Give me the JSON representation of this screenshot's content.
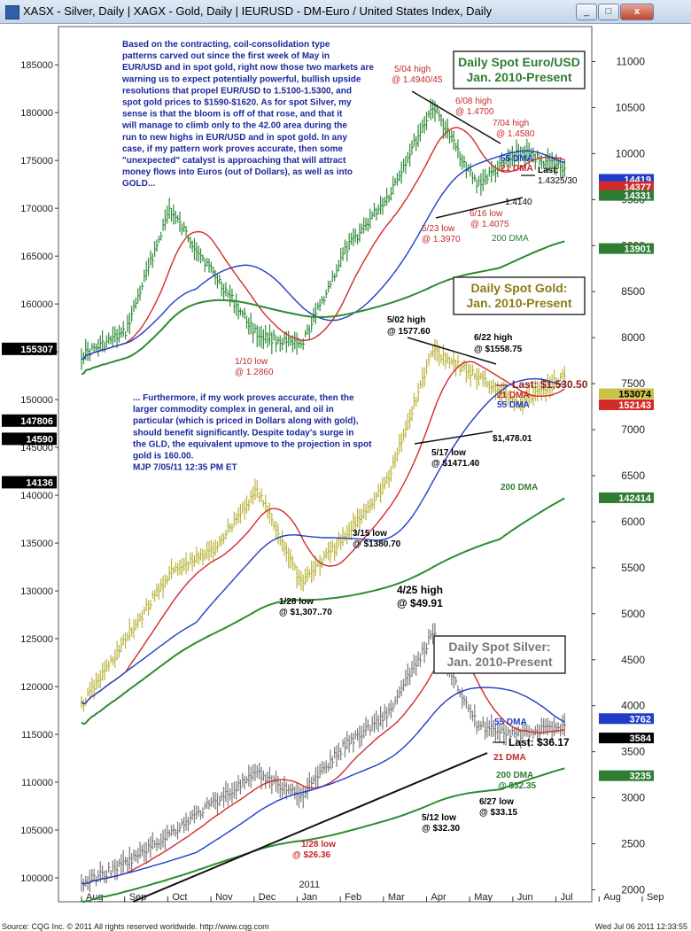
{
  "window": {
    "title": "XASX - Silver, Daily  |  XAGX - Gold, Daily  |  IEURUSD - DM-Euro / United States Index, Daily",
    "buttons": [
      "_",
      "□",
      "x",
      "▲",
      "▼"
    ]
  },
  "chart_data": {
    "type": "line",
    "subtype": "ohlc-bars",
    "x_axis": {
      "months": [
        "Aug",
        "Sep",
        "Oct",
        "Nov",
        "Dec",
        "Jan",
        "Feb",
        "Mar",
        "Apr",
        "May",
        "Jun",
        "Jul",
        "Aug",
        "Sep"
      ],
      "year_label": "2011"
    },
    "left_axis": {
      "ticks": [
        100000,
        105000,
        110000,
        115000,
        120000,
        125000,
        130000,
        135000,
        140000,
        145000,
        150000,
        155000,
        160000,
        165000,
        170000,
        175000,
        180000,
        185000
      ],
      "ylim": [
        97500,
        189000
      ]
    },
    "right_axis": {
      "ticks": [
        2000,
        2500,
        3000,
        3500,
        4000,
        4500,
        5000,
        5500,
        6000,
        6500,
        7000,
        7500,
        8000,
        8500,
        9000,
        9500,
        10000,
        10500,
        11000
      ],
      "ylim": [
        1870,
        11380
      ]
    },
    "left_value_boxes": [
      {
        "value": "14590",
        "y": 145900
      },
      {
        "value": "14136",
        "y": 141360
      },
      {
        "value": "155307",
        "y": 155307
      },
      {
        "value": "147806",
        "y": 147806
      }
    ],
    "right_value_boxes": [
      {
        "value": "14419",
        "y": 9720,
        "color": "#1e3cc8",
        "text_color": "#ffffff"
      },
      {
        "value": "14377",
        "y": 9640,
        "color": "#d42a2a",
        "text_color": "#ffffff"
      },
      {
        "value": "14331",
        "y": 9545,
        "color": "#2e7d32",
        "text_color": "#ffffff"
      },
      {
        "value": "13901",
        "y": 8968,
        "color": "#2e7d32",
        "text_color": "#ffffff"
      },
      {
        "value": "153074",
        "y": 7390,
        "color": "#c9c248",
        "text_color": "#000000"
      },
      {
        "value": "152143",
        "y": 7270,
        "color": "#d42a2a",
        "text_color": "#ffffff"
      },
      {
        "value": "142414",
        "y": 6260,
        "color": "#2e7d32",
        "text_color": "#ffffff"
      },
      {
        "value": "3762",
        "y": 3860,
        "color": "#1e3cc8",
        "text_color": "#ffffff"
      },
      {
        "value": "3584",
        "y": 3650,
        "color": "#000000",
        "text_color": "#ffffff"
      },
      {
        "value": "3235",
        "y": 3240,
        "color": "#2e7d32",
        "text_color": "#ffffff"
      }
    ],
    "panels": [
      {
        "name": "Daily Spot Euro/USD",
        "title_lines": [
          "Daily Spot Euro/USD",
          "Jan. 2010-Present"
        ],
        "title_color": "#2e7d32",
        "bar_color": "#2e8b3a",
        "dates": [
          "2010-08",
          "2010-09",
          "2010-10",
          "2010-11",
          "2010-12",
          "2011-01",
          "2011-02",
          "2011-03",
          "2011-04",
          "2011-05",
          "2011-06",
          "2011-07"
        ],
        "close": [
          1.289,
          1.307,
          1.401,
          1.352,
          1.305,
          1.296,
          1.369,
          1.412,
          1.48,
          1.42,
          1.445,
          1.4325
        ]
      },
      {
        "name": "Daily Spot Gold",
        "title_lines": [
          "Daily Spot Gold:",
          "Jan. 2010-Present"
        ],
        "title_color": "#8b7d14",
        "bar_color": "#b8b33a",
        "dates": [
          "2010-08",
          "2010-09",
          "2010-10",
          "2010-11",
          "2010-12",
          "2011-01",
          "2011-02",
          "2011-03",
          "2011-04",
          "2011-05",
          "2011-06",
          "2011-07"
        ],
        "close": [
          1213,
          1276,
          1340,
          1363,
          1421,
          1332,
          1375,
          1432,
          1556,
          1530,
          1505,
          1530.5
        ]
      },
      {
        "name": "Daily Spot Silver",
        "title_lines": [
          "Daily Spot Silver:",
          "Jan. 2010-Present"
        ],
        "title_color": "#777777",
        "bar_color": "#7a7a7a",
        "dates": [
          "2010-08",
          "2010-09",
          "2010-10",
          "2010-11",
          "2010-12",
          "2011-01",
          "2011-02",
          "2011-03",
          "2011-04",
          "2011-05",
          "2011-06",
          "2011-07"
        ],
        "close": [
          18.2,
          20.5,
          23.9,
          27.4,
          30.6,
          28.2,
          33.9,
          37.6,
          46.5,
          36.2,
          35.0,
          36.17
        ]
      }
    ],
    "annotations": {
      "euro_top_text": "Based on the contracting, coil-consolidation type patterns carved out since the first week of May in EUR/USD and in spot gold, right now those two markets are warning us to expect potentially powerful, bullish upside resolutions that propel EUR/USD to 1.5100-1.5300, and spot gold prices to $1590-$1620. As for spot Silver, my sense is that the bloom is off of that rose, and that it will manage to climb only to the 42.00 area during the run to new highs in EUR/USD and in spot gold. In any case, if my pattern work proves accurate, then some \"unexpected\" catalyst is approaching that will attract money flows into Euros (out of Dollars), as well as into GOLD...",
      "gold_mid_text": "... Furthermore, if my work proves accurate, then the larger commodity complex in general, and oil in particular (which is priced in Dollars along with gold), should benefit significantly. Despite today's surge in the GLD, the equivalent upmove to the projection in spot gold is 160.00.",
      "signature": "MJP 7/05/11  12:35 PM ET",
      "euro_labels": [
        "5/04 high",
        "@ 1.4940/45",
        "6/08 high",
        "@ 1.4700",
        "7/04 high",
        "@ 1.4580",
        "55 DMA",
        "21 DMA",
        "Last:",
        "1.4325/30",
        "1.4140",
        "6/16 low",
        "@ 1.4075",
        "5/23 low",
        "@ 1.3970",
        "200 DMA",
        "1/10 low",
        "@ 1.2860"
      ],
      "gold_labels": [
        "5/02 high",
        "@ 1577.60",
        "6/22 high",
        "@ $1558.75",
        "Last: $1,530.50",
        "21 DMA",
        "55 DMA",
        "$1,478.01",
        "5/17 low",
        "@ $1471.40",
        "200 DMA",
        "3/15 low",
        "@ $1380.70",
        "1/28 low",
        "@ $1,307..70"
      ],
      "silver_labels": [
        "4/25 high",
        "@ $49.91",
        "55 DMA",
        "Last: $36.17",
        "21 DMA",
        "200 DMA",
        "@ $32.35",
        "5/12 low",
        "@ $32.30",
        "6/27 low",
        "@ $33.15",
        "1/28 low",
        "@ $26.36"
      ]
    }
  },
  "status_bar": {
    "left": "Source: CQG Inc. © 2011 All rights reserved worldwide. http://www.cqg.com",
    "right": "Wed Jul 06 2011 12:33:55"
  }
}
